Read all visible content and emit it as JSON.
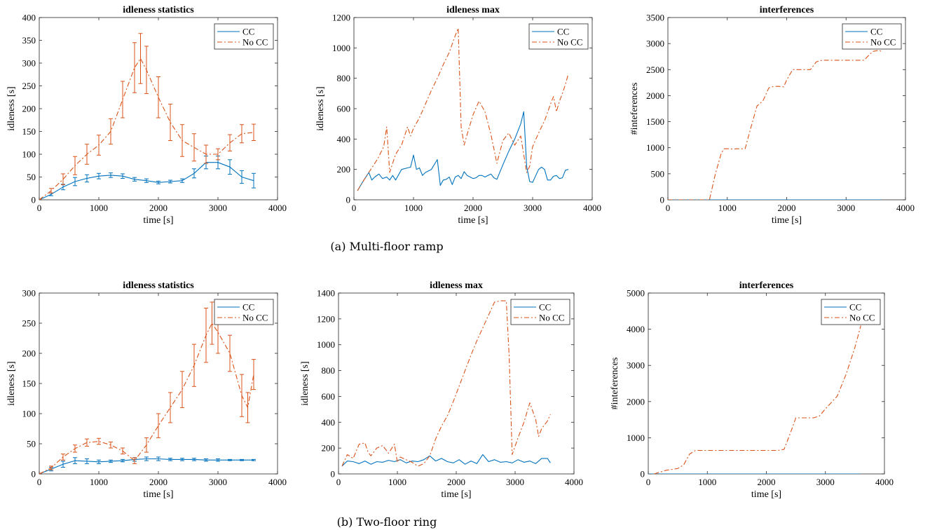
{
  "colors": {
    "cc": "#0072BD",
    "nocc": "#D95319"
  },
  "captions": [
    "(a) Multi-floor ramp",
    "(b) Two-floor ring"
  ],
  "chart_data": [
    {
      "type": "line",
      "title": "idleness statistics",
      "xlabel": "time [s]",
      "ylabel": "idleness [s]",
      "xlim": [
        0,
        4000
      ],
      "ylim": [
        0,
        400
      ],
      "xticks": [
        0,
        1000,
        2000,
        3000,
        4000
      ],
      "yticks": [
        0,
        50,
        100,
        150,
        200,
        250,
        300,
        350,
        400
      ],
      "legend": [
        "CC",
        "No CC"
      ],
      "legend_position": "top-right",
      "errorbars": true,
      "series": [
        {
          "name": "CC",
          "style": "solid",
          "x": [
            0,
            200,
            400,
            600,
            800,
            1000,
            1200,
            1400,
            1600,
            1800,
            2000,
            2200,
            2400,
            2600,
            2800,
            3000,
            3200,
            3400,
            3600
          ],
          "y": [
            0,
            12,
            28,
            40,
            47,
            52,
            54,
            52,
            45,
            42,
            38,
            40,
            42,
            58,
            82,
            82,
            72,
            50,
            42
          ],
          "err": [
            1,
            3,
            6,
            9,
            8,
            6,
            5,
            5,
            4,
            4,
            3,
            3,
            4,
            10,
            14,
            14,
            16,
            14,
            16
          ]
        },
        {
          "name": "No CC",
          "style": "dashdot",
          "x": [
            0,
            200,
            400,
            600,
            800,
            1000,
            1200,
            1400,
            1600,
            1700,
            1800,
            2000,
            2200,
            2400,
            2600,
            2800,
            3000,
            3200,
            3400,
            3600
          ],
          "y": [
            0,
            20,
            45,
            75,
            100,
            120,
            150,
            220,
            290,
            310,
            285,
            225,
            170,
            130,
            115,
            100,
            100,
            125,
            145,
            148
          ],
          "err": [
            1,
            5,
            12,
            20,
            22,
            22,
            28,
            40,
            55,
            55,
            52,
            45,
            40,
            35,
            30,
            20,
            12,
            18,
            20,
            18
          ]
        }
      ]
    },
    {
      "type": "line",
      "title": "idleness max",
      "xlabel": "time [s]",
      "ylabel": "idleness [s]",
      "xlim": [
        0,
        4000
      ],
      "ylim": [
        0,
        1200
      ],
      "xticks": [
        0,
        1000,
        2000,
        3000,
        4000
      ],
      "yticks": [
        0,
        200,
        400,
        600,
        800,
        1000,
        1200
      ],
      "legend": [
        "CC",
        "No CC"
      ],
      "legend_position": "top-right",
      "series": [
        {
          "name": "CC",
          "style": "solid",
          "x": [
            60,
            150,
            250,
            300,
            350,
            420,
            480,
            550,
            600,
            650,
            700,
            800,
            900,
            950,
            1000,
            1050,
            1100,
            1150,
            1200,
            1300,
            1400,
            1450,
            1500,
            1550,
            1600,
            1650,
            1700,
            1750,
            1800,
            1850,
            1900,
            1950,
            2000,
            2050,
            2100,
            2150,
            2200,
            2250,
            2300,
            2350,
            2400,
            2500,
            2600,
            2700,
            2800,
            2850,
            2900,
            2950,
            3000,
            3100,
            3150,
            3200,
            3250,
            3300,
            3350,
            3400,
            3450,
            3500,
            3550,
            3600
          ],
          "y": [
            60,
            120,
            180,
            130,
            150,
            170,
            140,
            150,
            130,
            160,
            130,
            200,
            210,
            215,
            295,
            200,
            210,
            160,
            180,
            200,
            265,
            95,
            130,
            135,
            150,
            100,
            150,
            160,
            140,
            185,
            160,
            150,
            140,
            145,
            160,
            160,
            150,
            160,
            170,
            145,
            135,
            230,
            320,
            400,
            500,
            580,
            220,
            120,
            115,
            200,
            215,
            200,
            130,
            130,
            155,
            160,
            140,
            145,
            195,
            200
          ]
        },
        {
          "name": "No CC",
          "style": "dashdot",
          "x": [
            60,
            200,
            300,
            400,
            500,
            550,
            600,
            700,
            800,
            900,
            950,
            1000,
            1100,
            1200,
            1300,
            1400,
            1500,
            1600,
            1700,
            1750,
            1800,
            1850,
            1900,
            2000,
            2100,
            2200,
            2300,
            2400,
            2500,
            2600,
            2700,
            2800,
            2900,
            2950,
            3000,
            3100,
            3200,
            3300,
            3350,
            3400,
            3450,
            3500,
            3550,
            3600
          ],
          "y": [
            60,
            150,
            210,
            270,
            350,
            480,
            180,
            300,
            360,
            480,
            420,
            470,
            540,
            630,
            720,
            800,
            890,
            970,
            1080,
            1130,
            480,
            360,
            430,
            560,
            650,
            580,
            430,
            240,
            390,
            440,
            360,
            420,
            180,
            220,
            350,
            440,
            520,
            630,
            680,
            580,
            650,
            700,
            760,
            830
          ]
        }
      ]
    },
    {
      "type": "line",
      "title": "interferences",
      "xlabel": "time [s]",
      "ylabel": "#inteferences",
      "xlim": [
        0,
        4000
      ],
      "ylim": [
        0,
        3500
      ],
      "xticks": [
        0,
        1000,
        2000,
        3000,
        4000
      ],
      "yticks": [
        0,
        500,
        1000,
        1500,
        2000,
        2500,
        3000,
        3500
      ],
      "legend": [
        "CC",
        "No CC"
      ],
      "legend_position": "top-right",
      "series": [
        {
          "name": "CC",
          "style": "solid",
          "x": [
            0,
            3600
          ],
          "y": [
            0,
            0
          ]
        },
        {
          "name": "No CC",
          "style": "dashdot",
          "x": [
            0,
            700,
            800,
            900,
            950,
            1050,
            1100,
            1150,
            1300,
            1400,
            1500,
            1600,
            1700,
            1750,
            1850,
            1950,
            2000,
            2100,
            2200,
            2300,
            2400,
            2500,
            2600,
            2800,
            3000,
            3200,
            3300,
            3450,
            3550,
            3600
          ],
          "y": [
            0,
            0,
            500,
            900,
            980,
            980,
            970,
            980,
            980,
            1400,
            1800,
            1900,
            2150,
            2170,
            2180,
            2170,
            2300,
            2500,
            2500,
            2500,
            2500,
            2650,
            2680,
            2680,
            2680,
            2680,
            2680,
            2850,
            2870,
            2850
          ]
        }
      ]
    },
    {
      "type": "line",
      "title": "idleness statistics",
      "xlabel": "time [s]",
      "ylabel": "idleness [s]",
      "xlim": [
        0,
        4000
      ],
      "ylim": [
        0,
        300
      ],
      "xticks": [
        0,
        1000,
        2000,
        3000,
        4000
      ],
      "yticks": [
        0,
        50,
        100,
        150,
        200,
        250,
        300
      ],
      "legend": [
        "CC",
        "No CC"
      ],
      "legend_position": "top-right",
      "errorbars": true,
      "series": [
        {
          "name": "CC",
          "style": "solid",
          "x": [
            0,
            200,
            400,
            600,
            800,
            1000,
            1200,
            1400,
            1600,
            1800,
            2000,
            2200,
            2400,
            2600,
            2800,
            3000,
            3200,
            3400,
            3600
          ],
          "y": [
            0,
            8,
            16,
            22,
            21,
            20,
            21,
            22,
            24,
            25,
            25,
            24,
            24,
            24,
            23,
            23,
            23,
            23,
            23
          ],
          "err": [
            1,
            3,
            5,
            5,
            4,
            3,
            2,
            2,
            3,
            3,
            3,
            2,
            2,
            2,
            2,
            2,
            1,
            1,
            1
          ]
        },
        {
          "name": "No CC",
          "style": "dashdot",
          "x": [
            0,
            200,
            400,
            600,
            800,
            1000,
            1200,
            1400,
            1600,
            1800,
            2000,
            2200,
            2400,
            2600,
            2800,
            2900,
            3000,
            3200,
            3400,
            3500,
            3600
          ],
          "y": [
            0,
            10,
            28,
            42,
            52,
            54,
            48,
            38,
            22,
            48,
            80,
            110,
            140,
            180,
            230,
            250,
            235,
            200,
            130,
            110,
            165
          ],
          "err": [
            1,
            3,
            5,
            6,
            6,
            5,
            5,
            5,
            5,
            12,
            20,
            25,
            30,
            35,
            45,
            35,
            35,
            30,
            35,
            25,
            25
          ]
        }
      ]
    },
    {
      "type": "line",
      "title": "idleness max",
      "xlabel": "time [s]",
      "ylabel": "idleness [s]",
      "xlim": [
        0,
        4000
      ],
      "ylim": [
        0,
        1400
      ],
      "xticks": [
        0,
        1000,
        2000,
        3000,
        4000
      ],
      "yticks": [
        0,
        200,
        400,
        600,
        800,
        1000,
        1200,
        1400
      ],
      "legend": [
        "CC",
        "No CC"
      ],
      "legend_position": "top-right",
      "series": [
        {
          "name": "CC",
          "style": "solid",
          "x": [
            60,
            150,
            250,
            350,
            450,
            550,
            650,
            750,
            850,
            950,
            1050,
            1150,
            1250,
            1350,
            1450,
            1550,
            1650,
            1750,
            1850,
            1950,
            2050,
            2150,
            2250,
            2350,
            2450,
            2550,
            2650,
            2750,
            2850,
            2950,
            3050,
            3150,
            3250,
            3350,
            3450,
            3550,
            3600
          ],
          "y": [
            60,
            100,
            95,
            80,
            100,
            75,
            95,
            90,
            105,
            95,
            110,
            85,
            100,
            95,
            110,
            140,
            100,
            120,
            95,
            85,
            110,
            75,
            100,
            80,
            150,
            95,
            110,
            90,
            95,
            85,
            110,
            90,
            100,
            80,
            120,
            120,
            85
          ]
        },
        {
          "name": "No CC",
          "style": "dashdot",
          "x": [
            60,
            150,
            250,
            350,
            450,
            500,
            550,
            650,
            750,
            850,
            950,
            1000,
            1050,
            1150,
            1250,
            1350,
            1450,
            1550,
            1650,
            1750,
            1850,
            1950,
            2050,
            2150,
            2250,
            2350,
            2450,
            2550,
            2650,
            2750,
            2850,
            2900,
            2950,
            3050,
            3150,
            3250,
            3350,
            3400,
            3450,
            3550,
            3600
          ],
          "y": [
            60,
            150,
            120,
            230,
            240,
            170,
            140,
            200,
            220,
            160,
            230,
            90,
            130,
            110,
            90,
            60,
            80,
            140,
            270,
            370,
            450,
            560,
            680,
            800,
            920,
            1030,
            1130,
            1230,
            1330,
            1340,
            1340,
            900,
            150,
            280,
            400,
            550,
            420,
            290,
            350,
            410,
            460
          ]
        }
      ]
    },
    {
      "type": "line",
      "title": "interferences",
      "xlabel": "time [s]",
      "ylabel": "#inteferences",
      "xlim": [
        0,
        4000
      ],
      "ylim": [
        0,
        5000
      ],
      "xticks": [
        0,
        1000,
        2000,
        3000,
        4000
      ],
      "yticks": [
        0,
        1000,
        2000,
        3000,
        4000,
        5000
      ],
      "legend": [
        "CC",
        "No CC"
      ],
      "legend_position": "top-right",
      "series": [
        {
          "name": "CC",
          "style": "solid",
          "x": [
            0,
            3600
          ],
          "y": [
            0,
            0
          ]
        },
        {
          "name": "No CC",
          "style": "dashdot",
          "x": [
            100,
            300,
            500,
            600,
            700,
            800,
            1000,
            1500,
            2000,
            2200,
            2300,
            2400,
            2500,
            2800,
            2900,
            3000,
            3200,
            3350,
            3500,
            3600
          ],
          "y": [
            0,
            100,
            150,
            250,
            550,
            650,
            650,
            650,
            650,
            650,
            680,
            1100,
            1550,
            1550,
            1600,
            1800,
            2150,
            2750,
            3500,
            4100
          ]
        }
      ]
    }
  ]
}
